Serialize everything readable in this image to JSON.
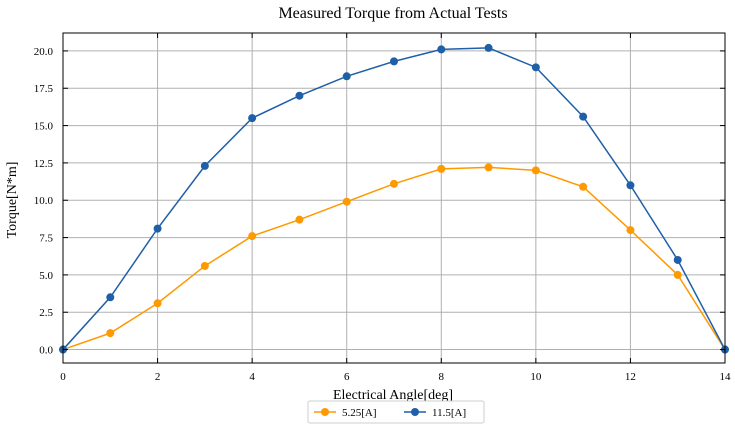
{
  "chart_data": {
    "type": "line",
    "title": "Measured Torque from Actual Tests",
    "xlabel": "Electrical Angle[deg]",
    "ylabel": "Torque[N*m]",
    "xlim": [
      0,
      14
    ],
    "ylim": [
      -0.9,
      21.2
    ],
    "xticks": [
      0,
      2,
      4,
      6,
      8,
      10,
      12,
      14
    ],
    "xtick_labels": [
      "0",
      "2",
      "4",
      "6",
      "8",
      "10",
      "12",
      "14"
    ],
    "yticks": [
      0,
      2.5,
      5,
      7.5,
      10,
      12.5,
      15,
      17.5,
      20
    ],
    "ytick_labels": [
      "0.0",
      "2.5",
      "5.0",
      "7.5",
      "10.0",
      "12.5",
      "15.0",
      "17.5",
      "20.0"
    ],
    "grid": true,
    "legend_position": "bottom-center",
    "x": [
      0,
      1,
      2,
      3,
      4,
      5,
      6,
      7,
      8,
      9,
      10,
      11,
      12,
      13,
      14
    ],
    "series": [
      {
        "name": "5.25[A]",
        "color": "#ff9900",
        "values": [
          0.0,
          1.1,
          3.1,
          5.6,
          7.6,
          8.7,
          9.9,
          11.1,
          12.1,
          12.2,
          12.0,
          10.9,
          8.0,
          5.0,
          0.0
        ]
      },
      {
        "name": "11.5[A]",
        "color": "#1f5fa8",
        "values": [
          0.0,
          3.5,
          8.1,
          12.3,
          15.5,
          17.0,
          18.3,
          19.3,
          20.1,
          20.2,
          18.9,
          15.6,
          11.0,
          6.0,
          0.0
        ]
      }
    ]
  }
}
